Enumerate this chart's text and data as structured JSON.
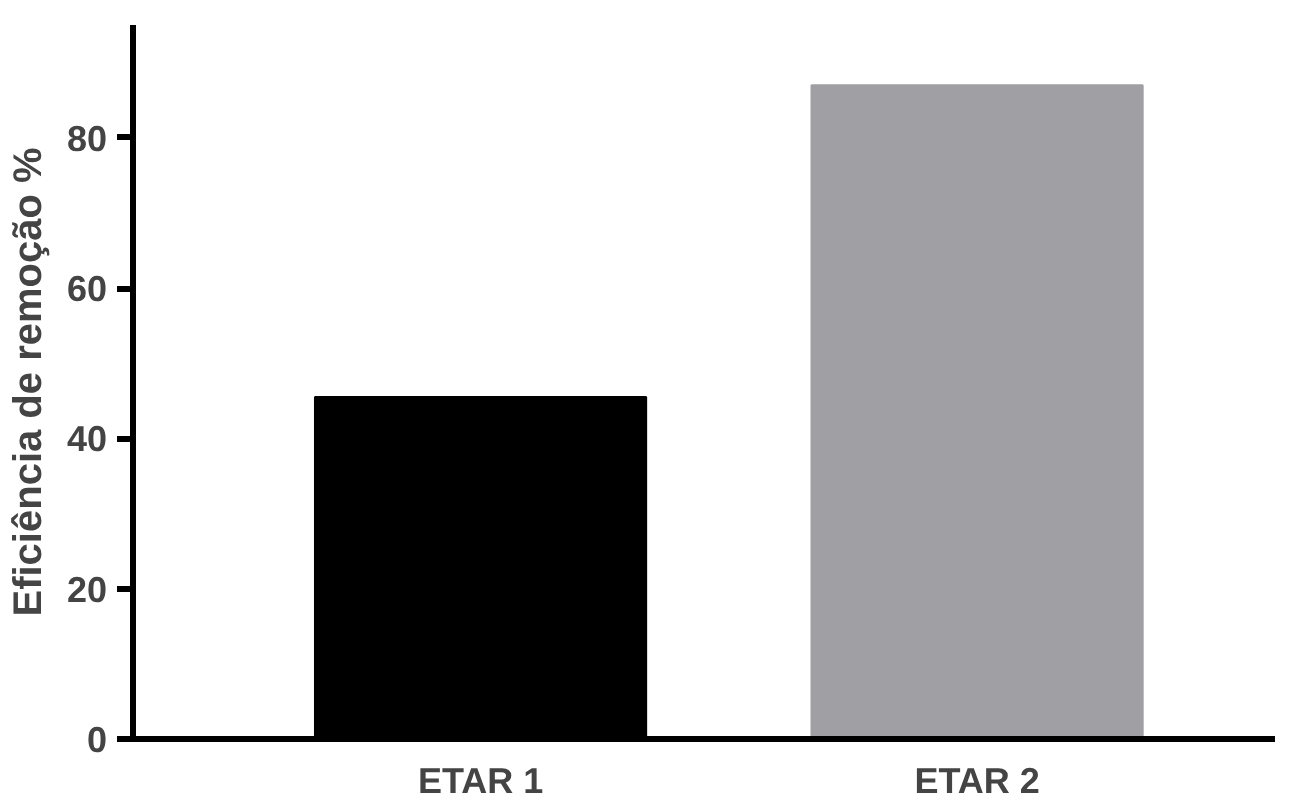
{
  "chart_data": {
    "type": "bar",
    "ylabel": "Eficiência de remoção %",
    "categories": [
      "ETAR 1",
      "ETAR 2"
    ],
    "values": [
      45.5,
      87
    ],
    "colors": [
      "#000000",
      "#a0a0a4"
    ],
    "ylim": [
      0,
      95
    ],
    "yticks": [
      0,
      20,
      40,
      60,
      80
    ],
    "grid": false
  }
}
